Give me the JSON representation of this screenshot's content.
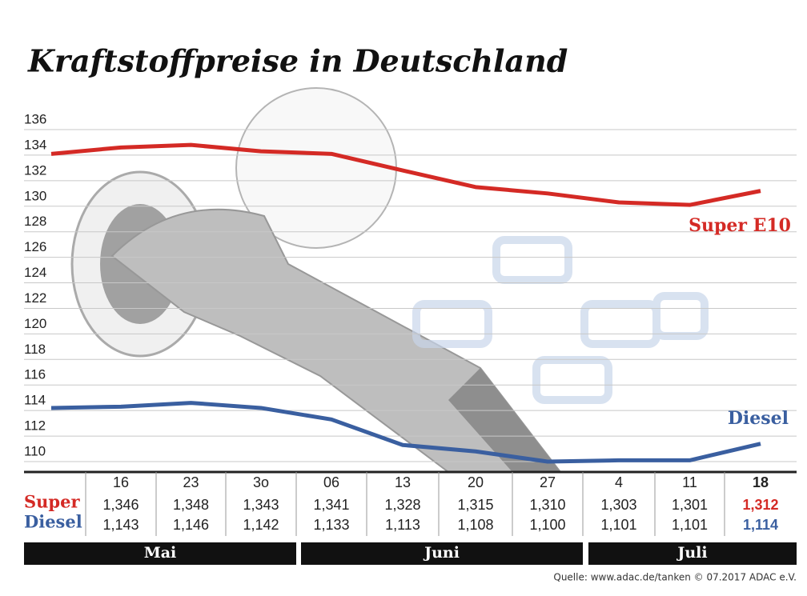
{
  "chart_data": {
    "type": "line",
    "title": "Kraftstoffpreise in Deutschland",
    "categories": [
      null,
      "16",
      "23",
      "3o",
      "06",
      "13",
      "20",
      "27",
      "4",
      "11",
      "18"
    ],
    "series": [
      {
        "name": "Super E10",
        "row_label": "Super",
        "color": "#d42a25",
        "values": [
          134.1,
          134.6,
          134.8,
          134.3,
          134.1,
          132.8,
          131.5,
          131.0,
          130.3,
          130.1,
          131.2
        ],
        "value_labels": [
          null,
          "1,346",
          "1,348",
          "1,343",
          "1,341",
          "1,328",
          "1,315",
          "1,310",
          "1,303",
          "1,301",
          "1,312"
        ]
      },
      {
        "name": "Diesel",
        "row_label": "Diesel",
        "color": "#3a5fa0",
        "values": [
          114.2,
          114.3,
          114.6,
          114.2,
          113.3,
          111.3,
          110.8,
          110.0,
          110.1,
          110.1,
          111.4
        ],
        "value_labels": [
          null,
          "1,143",
          "1,146",
          "1,142",
          "1,133",
          "1,113",
          "1,108",
          "1,100",
          "1,101",
          "1,101",
          "1,114"
        ]
      }
    ],
    "months": [
      "Mai",
      "Juni",
      "Juli"
    ],
    "ylim": [
      110,
      136
    ],
    "yticks": [
      110,
      112,
      114,
      116,
      118,
      120,
      122,
      124,
      126,
      128,
      130,
      132,
      134,
      136
    ],
    "grid": true,
    "source": "Quelle: www.adac.de/tanken  © 07.2017  ADAC e.V."
  }
}
